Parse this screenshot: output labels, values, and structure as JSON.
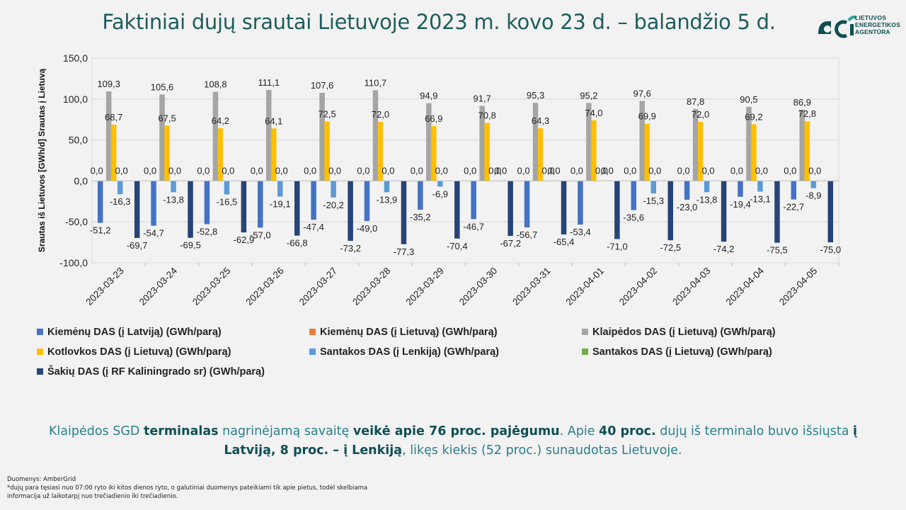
{
  "header": {
    "title": "Faktiniai dujų srautai Lietuvoje 2023 m. kovo 23 d. – balandžio 5 d."
  },
  "logo": {
    "line1": "LIETUVOS",
    "line2": "ENERGETIKOS",
    "line3": "AGENTŪRA",
    "icon": "dci-logo-icon"
  },
  "chart_data": {
    "type": "bar",
    "ylabel": "Srautas iš Lietuvos [GWh/d] Srautas į Lietuvą",
    "ylim": [
      -100,
      150
    ],
    "yticks": [
      "-100,0",
      "-50,0",
      "0,0",
      "50,0",
      "100,0",
      "150,0"
    ],
    "ytick_values": [
      -100,
      -50,
      0,
      50,
      100,
      150
    ],
    "grid": true,
    "legend_position": "bottom",
    "categories": [
      "2023-03-23",
      "2023-03-24",
      "2023-03-25",
      "2023-03-26",
      "2023-03-27",
      "2023-03-28",
      "2023-03-29",
      "2023-03-30",
      "2023-03-31",
      "2023-04-01",
      "2023-04-02",
      "2023-04-03",
      "2023-04-04",
      "2023-04-05"
    ],
    "series": [
      {
        "name": "Kiemėnų DAS (į Latviją) (GWh/parą)",
        "color": "#4472c4",
        "values": [
          -51.2,
          -54.7,
          -52.8,
          -57.0,
          -47.4,
          -49.0,
          -35.2,
          -46.7,
          -56.7,
          -53.4,
          -35.6,
          -23.0,
          -19.4,
          -22.7
        ],
        "labels": [
          "-51,2",
          "-54,7",
          "-52,8",
          "-57,0",
          "-47,4",
          "-49,0",
          "-35,2",
          "-46,7",
          "-56,7",
          "-53,4",
          "-35,6",
          "-23,0",
          "-19,4",
          "-22,7"
        ]
      },
      {
        "name": "Kiemėnų DAS (į Lietuvą) (GWh/parą)",
        "color": "#ed7d31",
        "values": [
          0,
          0,
          0,
          0,
          0,
          0,
          0,
          0,
          0,
          0,
          0,
          0,
          0,
          0
        ],
        "labels": [
          "0,0",
          "0,0",
          "0,0",
          "0,0",
          "0,0",
          "0,0",
          "0,0",
          "0,0",
          "0,0",
          "0,0",
          "0,0",
          "0,0",
          "0,0",
          "0,0"
        ]
      },
      {
        "name": "Klaipėdos DAS (į Lietuvą) (GWh/parą)",
        "color": "#a5a5a5",
        "values": [
          109.3,
          105.6,
          108.8,
          111.1,
          107.6,
          110.7,
          94.9,
          91.7,
          95.3,
          95.2,
          97.6,
          87.8,
          90.5,
          86.9
        ],
        "labels": [
          "109,3",
          "105,6",
          "108,8",
          "111,1",
          "107,6",
          "110,7",
          "94,9",
          "91,7",
          "95,3",
          "95,2",
          "97,6",
          "87,8",
          "90,5",
          "86,9"
        ]
      },
      {
        "name": "Kotlovkos DAS (į Lietuvą) (GWh/parą)",
        "color": "#ffc000",
        "values": [
          68.7,
          67.5,
          64.2,
          64.1,
          72.5,
          72.0,
          66.9,
          70.8,
          64.3,
          74.0,
          69.9,
          72.0,
          69.2,
          72.8
        ],
        "labels": [
          "68,7",
          "67,5",
          "64,2",
          "64,1",
          "72,5",
          "72,0",
          "66,9",
          "70,8",
          "64,3",
          "74,0",
          "69,9",
          "72,0",
          "69,2",
          "72,8"
        ]
      },
      {
        "name": "Santakos DAS (į Lenkiją) (GWh/parą)",
        "color": "#5b9bd5",
        "values": [
          -16.3,
          -13.8,
          -16.5,
          -19.1,
          -20.2,
          -13.9,
          -6.9,
          0,
          0,
          0,
          -15.3,
          -13.8,
          -13.1,
          -8.9
        ],
        "labels": [
          "-16,3",
          "-13,8",
          "-16,5",
          "-19,1",
          "-20,2",
          "-13,9",
          "-6,9",
          "0,0",
          "0,0",
          "0,0",
          "-15,3",
          "-13,8",
          "-13,1",
          "-8,9"
        ]
      },
      {
        "name": "Santakos DAS (į Lietuvą) (GWh/parą)",
        "color": "#70ad47",
        "values": [
          0,
          0,
          0,
          0,
          0,
          0,
          0,
          0,
          0,
          0,
          0,
          0,
          0,
          0
        ],
        "labels": [
          "0,0",
          "0,0",
          "0,0",
          "0,0",
          "0,0",
          "0,0",
          "0,0",
          "0,0",
          "0,0",
          "0,0",
          "0,0",
          "0,0",
          "0,0",
          "0,0"
        ]
      },
      {
        "name": "Šakių DAS (į RF Kaliningrado sr) (GWh/parą)",
        "color": "#264478",
        "values": [
          -69.7,
          -69.5,
          -62.9,
          -66.8,
          -73.2,
          -77.3,
          -70.4,
          -67.2,
          -65.4,
          -71.0,
          -72.5,
          -74.2,
          -75.5,
          -75.0
        ],
        "labels": [
          "-69,7",
          "-69,5",
          "-62,9",
          "-66,8",
          "-73,2",
          "-77,3",
          "-70,4",
          "-67,2",
          "-65,4",
          "-71,0",
          "-72,5",
          "-74,2",
          "-75,5",
          "-75,0"
        ]
      }
    ]
  },
  "summary": {
    "p1": "Klaipėdos SGD ",
    "b1": "terminalas",
    "p2": " nagrinėjamą savaitę ",
    "b2": "veikė apie 76 proc. pajėgumu",
    "p3": ". Apie ",
    "b3": "40 proc.",
    "p4": " dujų iš terminalo buvo išsiųsta ",
    "b4": "į Latviją, 8 proc. – į Lenkiją",
    "p5": ", likęs kiekis (52 proc.) sunaudotas Lietuvoje."
  },
  "footnote": {
    "line1": "Duomenys: AmberGrid",
    "line2": "*dujų para tęsiasi nuo 07:00 ryto iki kitos dienos ryto, o galutiniai duomenys pateikiami tik apie pietus, todėl skelbiama",
    "line3": "informacija už laikotarpį nuo trečiadienio iki trečiadienio."
  }
}
